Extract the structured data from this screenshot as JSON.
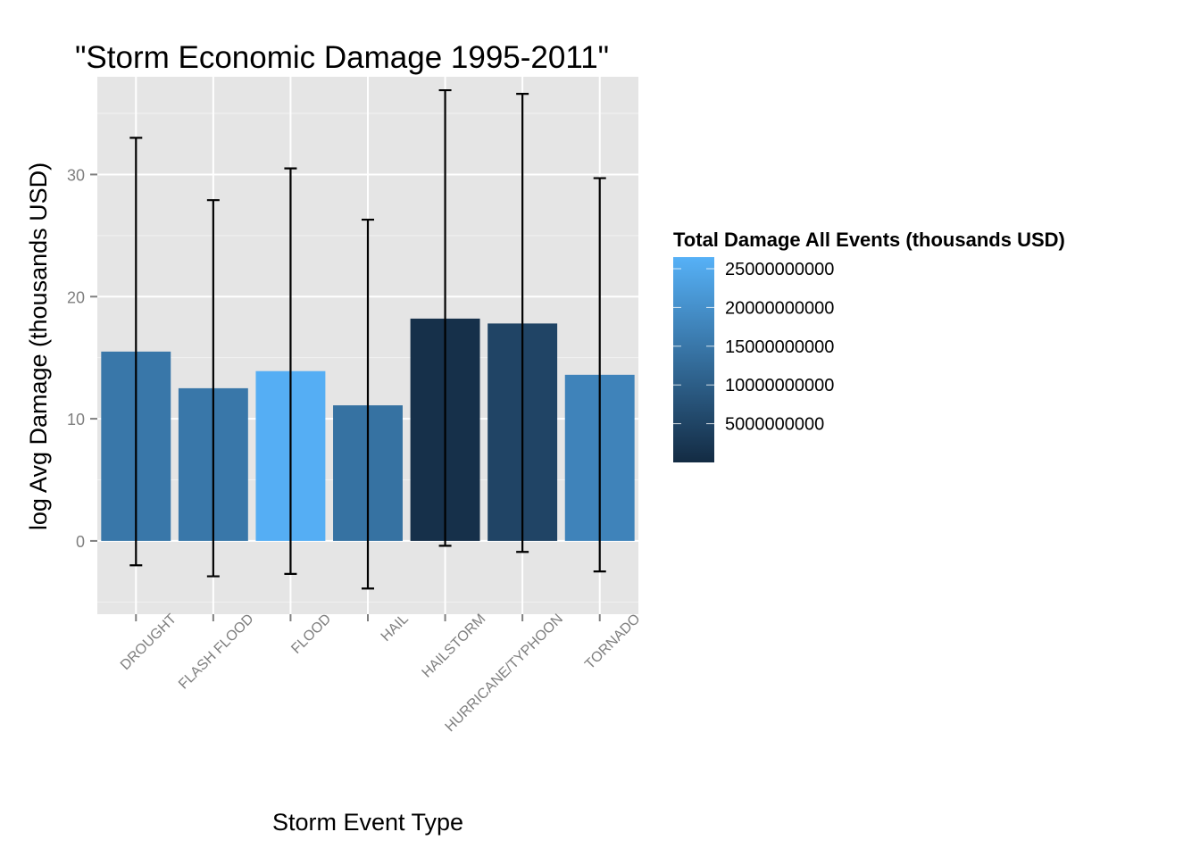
{
  "chart_data": {
    "type": "bar",
    "title": "\"Storm Economic Damage 1995-2011\"",
    "xlabel": "Storm Event Type",
    "ylabel": "log Avg Damage (thousands USD)",
    "categories": [
      "DROUGHT",
      "FLASH FLOOD",
      "FLOOD",
      "HAIL",
      "HAILSTORM",
      "HURRICANE/TYPHOON",
      "TORNADO"
    ],
    "values": [
      15.5,
      12.5,
      13.9,
      11.1,
      18.2,
      17.8,
      13.6
    ],
    "error_lower": [
      -2.0,
      -2.9,
      -2.7,
      -3.9,
      -0.4,
      -0.9,
      -2.5
    ],
    "error_upper": [
      33.0,
      27.9,
      30.5,
      26.3,
      36.9,
      36.6,
      29.7
    ],
    "fill_values": [
      15000000000,
      15000000000,
      26000000000,
      14000000000,
      1000000000,
      5000000000,
      17500000000
    ],
    "ylim": [
      -6,
      38
    ],
    "y_ticks": [
      0,
      10,
      20,
      30
    ],
    "grid": true,
    "legend": {
      "title": "Total Damage All Events (thousands USD)",
      "position": "right",
      "range": [
        0,
        26500000000
      ],
      "breaks": [
        5000000000,
        10000000000,
        15000000000,
        20000000000,
        25000000000
      ],
      "labels": [
        "5000000000",
        "10000000000",
        "15000000000",
        "20000000000",
        "25000000000"
      ],
      "low_color": "#132b43",
      "high_color": "#56b1f7"
    }
  }
}
